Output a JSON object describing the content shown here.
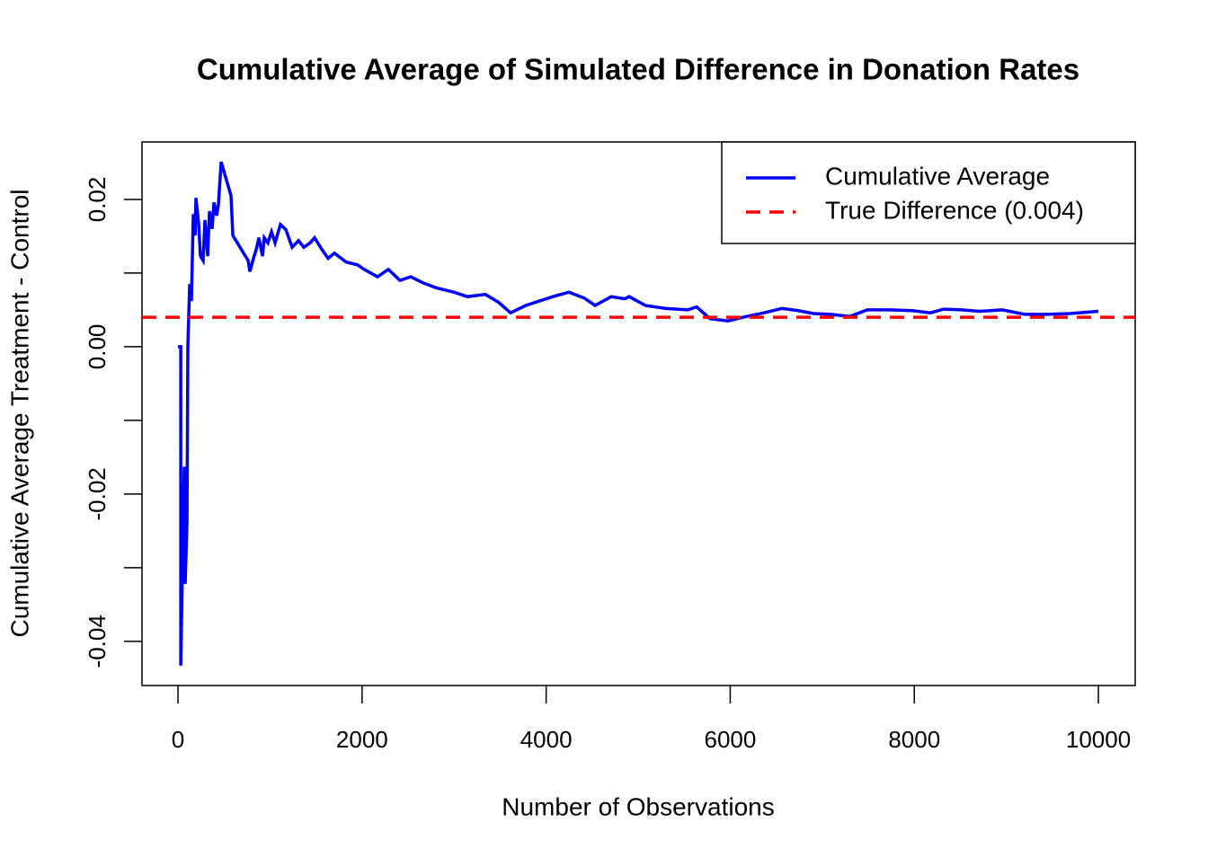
{
  "chart_data": {
    "type": "line",
    "title": "Cumulative Average of Simulated Difference in Donation Rates",
    "xlabel": "Number of Observations",
    "ylabel": "Cumulative Average Treatment - Control",
    "xlim": [
      -391,
      10400
    ],
    "ylim": [
      -0.046,
      0.0278
    ],
    "xticks": [
      0,
      2000,
      4000,
      6000,
      8000,
      10000
    ],
    "yticks": [
      {
        "value": -0.04,
        "label": "-0.04"
      },
      {
        "value": -0.03,
        "label": null
      },
      {
        "value": -0.02,
        "label": "-0.02"
      },
      {
        "value": -0.01,
        "label": null
      },
      {
        "value": 0,
        "label": "0.00"
      },
      {
        "value": 0.01,
        "label": null
      },
      {
        "value": 0.02,
        "label": "0.02"
      }
    ],
    "legend": "topright",
    "series": [
      {
        "name": "Cumulative Average",
        "color": "#0000ff",
        "dashed": false,
        "x": [
          0,
          30,
          30,
          68,
          78,
          98,
          107,
          127,
          146,
          166,
          186,
          195,
          225,
          244,
          273,
          293,
          322,
          342,
          371,
          391,
          420,
          439,
          469,
          576,
          596,
          762,
          781,
          820,
          850,
          879,
          918,
          937,
          977,
          1016,
          1055,
          1113,
          1172,
          1240,
          1309,
          1367,
          1436,
          1484,
          1563,
          1631,
          1699,
          1826,
          1953,
          2021,
          2168,
          2285,
          2412,
          2529,
          2656,
          2803,
          2998,
          3145,
          3340,
          3486,
          3613,
          3779,
          3926,
          4072,
          4248,
          4414,
          4531,
          4707,
          4854,
          4902,
          5078,
          5293,
          5537,
          5635,
          5781,
          5977,
          6172,
          6367,
          6563,
          6738,
          6904,
          7100,
          7295,
          7490,
          7734,
          7979,
          8174,
          8320,
          8516,
          8711,
          8955,
          9199,
          9443,
          9688,
          10000
        ],
        "values": [
          0,
          0,
          -0.0433,
          -0.0163,
          -0.0322,
          -0.0237,
          0,
          0.0085,
          0.0062,
          0.018,
          0.0151,
          0.0202,
          0.0166,
          0.0123,
          0.0117,
          0.0172,
          0.0123,
          0.0184,
          0.016,
          0.0196,
          0.0178,
          0.0193,
          0.0251,
          0.0205,
          0.0151,
          0.0117,
          0.0102,
          0.012,
          0.0132,
          0.0148,
          0.0123,
          0.0148,
          0.0141,
          0.0156,
          0.0141,
          0.0166,
          0.0159,
          0.0135,
          0.0144,
          0.0135,
          0.0141,
          0.0148,
          0.0132,
          0.012,
          0.0127,
          0.0115,
          0.0111,
          0.0105,
          0.0095,
          0.0105,
          0.009,
          0.0095,
          0.0087,
          0.008,
          0.0074,
          0.0068,
          0.0071,
          0.006,
          0.0046,
          0.0056,
          0.0062,
          0.0068,
          0.0074,
          0.0066,
          0.0056,
          0.0068,
          0.0065,
          0.0068,
          0.0056,
          0.0052,
          0.005,
          0.0054,
          0.0038,
          0.0035,
          0.0041,
          0.0046,
          0.0052,
          0.0049,
          0.0045,
          0.0044,
          0.0041,
          0.005,
          0.005,
          0.0049,
          0.0046,
          0.0051,
          0.005,
          0.0048,
          0.005,
          0.0044,
          0.0044,
          0.0045,
          0.0048
        ]
      },
      {
        "name": "True Difference (0.004)",
        "color": "#ff0000",
        "dashed": true,
        "x": [
          -391,
          10400
        ],
        "values": [
          0.004,
          0.004
        ]
      }
    ]
  }
}
